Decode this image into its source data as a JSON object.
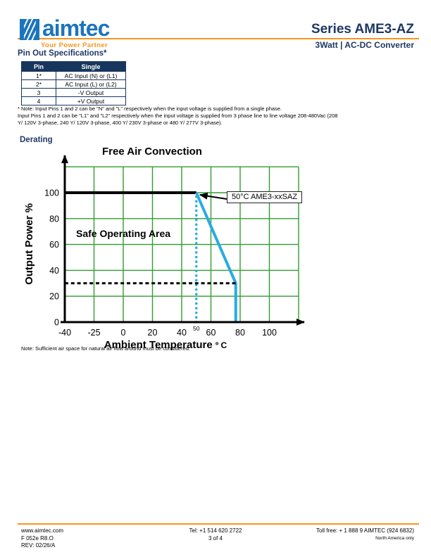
{
  "header": {
    "brand": "aimtec",
    "tagline": "Your Power Partner",
    "series_title": "Series AME3-AZ",
    "subtitle": "3Watt | AC-DC Converter"
  },
  "pinout": {
    "heading": "Pin Out Specifications*",
    "table": {
      "columns": [
        "Pin",
        "Single"
      ],
      "rows": [
        [
          "1*",
          "AC Input (N) or (L1)"
        ],
        [
          "2*",
          "AC Input (L) or (L2)"
        ],
        [
          "3",
          "-V Output"
        ],
        [
          "4",
          "+V Output"
        ]
      ]
    },
    "note_lines": [
      "* Note:  Input Pins 1 and 2 can be \"N\" and \"L\" respectively when the input voltage is supplied from a single phase.",
      "Input Pins 1 and 2 can be \"L1\" and \"L2\" respectively when the input voltage is supplied from 3 phase line to line voltage 208-480Vac (208",
      "Y/ 120V 3-phase, 240 Y/ 120V 3-phase, 400 Y/ 230V 3-phase or 480 Y/ 277V 3-phase)."
    ]
  },
  "derating": {
    "heading": "Derating",
    "air_note": "Note: Sufficient air space for natural air flow around must be considered."
  },
  "chart_data": {
    "type": "line",
    "title": "Free Air Convection",
    "xlabel": "Ambient Temperature",
    "xlabel_unit": "º C",
    "ylabel": "Output Power %",
    "x_ticks": [
      -40,
      -25,
      0,
      20,
      40,
      60,
      80,
      100
    ],
    "x_minor_tick": 50,
    "y_ticks": [
      0,
      20,
      40,
      60,
      80,
      100
    ],
    "y_top": 120,
    "grid": true,
    "grid_color": "#2f9e2f",
    "series": [
      {
        "name": "full-power-line",
        "color": "#000000",
        "width": 4,
        "dash": null,
        "points": [
          [
            -40,
            100
          ],
          [
            50,
            100
          ]
        ]
      },
      {
        "name": "derating-curve",
        "color": "#29abe2",
        "width": 4,
        "dash": null,
        "points": [
          [
            50,
            100
          ],
          [
            77,
            30
          ],
          [
            77,
            0
          ]
        ]
      },
      {
        "name": "guide-50C-vertical",
        "color": "#29abe2",
        "width": 3.5,
        "dash": "dotted",
        "points": [
          [
            50,
            0
          ],
          [
            50,
            100
          ]
        ]
      },
      {
        "name": "guide-30pct-horizontal",
        "color": "#000000",
        "width": 3,
        "dash": "dashed",
        "points": [
          [
            -40,
            30
          ],
          [
            77,
            30
          ]
        ]
      }
    ],
    "annotation": {
      "text": "50°C AME3-xxSAZ",
      "target": [
        50,
        100
      ]
    },
    "area_label": "Safe Operating Area"
  },
  "footer": {
    "website": "www.aimtec.com",
    "doc_id": "F 052e R8.O",
    "rev": "REV: 02/26/A",
    "tel": "Tel: +1 514 620 2722",
    "page": "3 of 4",
    "tollfree": "Toll free: + 1 888 9 AIMTEC (924 6832)",
    "region": "North America only"
  },
  "colors": {
    "navy": "#1f3864",
    "table_header_bg": "#17365d",
    "logo_blue": "#1c75bc",
    "orange": "#f7941e",
    "grid_green": "#2f9e2f",
    "sky_blue": "#29abe2"
  }
}
